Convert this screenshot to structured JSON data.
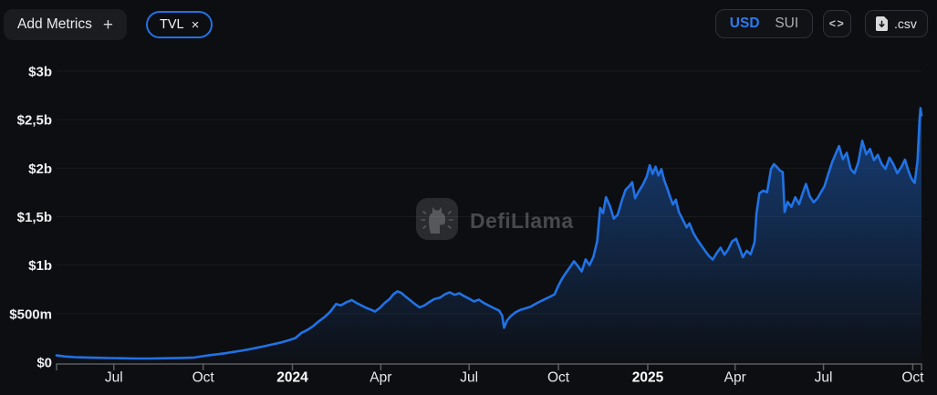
{
  "header": {
    "add_metrics": {
      "label": "Add Metrics",
      "plus_icon": "+"
    },
    "metric_chips": [
      {
        "label": "TVL",
        "close_icon": "×"
      }
    ],
    "currency_toggle": {
      "options": [
        "USD",
        "SUI"
      ],
      "selected": "USD"
    },
    "embed_button": {
      "glyph": "<>"
    },
    "csv_button": {
      "label": ".csv",
      "icon": "file-download"
    }
  },
  "watermark": {
    "label": "DefiLlama",
    "icon": "defillama-llama-logo"
  },
  "colors": {
    "background": "#0d0e11",
    "accent_blue": "#2172e5",
    "axis_text": "#eff0f2",
    "muted_text": "#aeb0b4",
    "grid_line": "rgba(255,255,255,0.05)",
    "axis_line": "#46484c",
    "tick_mark": "#5b5d61",
    "watermark_text": "#48494d"
  },
  "chart_data": {
    "type": "area",
    "unit": "USD",
    "y_domain": [
      0,
      3000
    ],
    "x_domain": [
      "2023-05-03",
      "2025-10-10"
    ],
    "values_unit": "millions_usd",
    "grid": true,
    "legend": "none",
    "y_ticks": [
      {
        "label": "$3b",
        "value": 3000
      },
      {
        "label": "$2,5b",
        "value": 2500
      },
      {
        "label": "$2b",
        "value": 2000
      },
      {
        "label": "$1,5b",
        "value": 1500
      },
      {
        "label": "$1b",
        "value": 1000
      },
      {
        "label": "$500m",
        "value": 500
      },
      {
        "label": "$0",
        "value": 0
      }
    ],
    "x_ticks": [
      {
        "label": "Jul",
        "date": "2023-07-01",
        "bold": false
      },
      {
        "label": "Oct",
        "date": "2023-10-01",
        "bold": false
      },
      {
        "label": "2024",
        "date": "2024-01-01",
        "bold": true
      },
      {
        "label": "Apr",
        "date": "2024-04-01",
        "bold": false
      },
      {
        "label": "Jul",
        "date": "2024-07-01",
        "bold": false
      },
      {
        "label": "Oct",
        "date": "2024-10-01",
        "bold": false
      },
      {
        "label": "2025",
        "date": "2025-01-01",
        "bold": true
      },
      {
        "label": "Apr",
        "date": "2025-04-01",
        "bold": false
      },
      {
        "label": "Jul",
        "date": "2025-07-01",
        "bold": false
      },
      {
        "label": "Oct",
        "date": "2025-10-01",
        "bold": false
      }
    ],
    "series": [
      {
        "name": "TVL",
        "color": "#2172e5",
        "points": [
          [
            "2023-05-03",
            70
          ],
          [
            "2023-05-12",
            58
          ],
          [
            "2023-05-22",
            52
          ],
          [
            "2023-06-03",
            48
          ],
          [
            "2023-06-14",
            45
          ],
          [
            "2023-06-26",
            42
          ],
          [
            "2023-07-08",
            40
          ],
          [
            "2023-07-24",
            38
          ],
          [
            "2023-08-08",
            38
          ],
          [
            "2023-08-24",
            40
          ],
          [
            "2023-09-08",
            43
          ],
          [
            "2023-09-22",
            48
          ],
          [
            "2023-10-01",
            62
          ],
          [
            "2023-10-08",
            72
          ],
          [
            "2023-10-16",
            82
          ],
          [
            "2023-10-24",
            92
          ],
          [
            "2023-11-01",
            105
          ],
          [
            "2023-11-09",
            118
          ],
          [
            "2023-11-17",
            132
          ],
          [
            "2023-11-25",
            148
          ],
          [
            "2023-12-03",
            165
          ],
          [
            "2023-12-11",
            182
          ],
          [
            "2023-12-19",
            200
          ],
          [
            "2023-12-27",
            222
          ],
          [
            "2024-01-04",
            248
          ],
          [
            "2024-01-10",
            300
          ],
          [
            "2024-01-16",
            330
          ],
          [
            "2024-01-22",
            370
          ],
          [
            "2024-01-28",
            420
          ],
          [
            "2024-02-03",
            465
          ],
          [
            "2024-02-09",
            520
          ],
          [
            "2024-02-15",
            600
          ],
          [
            "2024-02-20",
            585
          ],
          [
            "2024-02-25",
            615
          ],
          [
            "2024-03-02",
            640
          ],
          [
            "2024-03-07",
            610
          ],
          [
            "2024-03-12",
            585
          ],
          [
            "2024-03-17",
            560
          ],
          [
            "2024-03-22",
            540
          ],
          [
            "2024-03-26",
            522
          ],
          [
            "2024-03-31",
            560
          ],
          [
            "2024-04-05",
            610
          ],
          [
            "2024-04-10",
            650
          ],
          [
            "2024-04-14",
            700
          ],
          [
            "2024-04-18",
            730
          ],
          [
            "2024-04-22",
            715
          ],
          [
            "2024-04-26",
            680
          ],
          [
            "2024-05-01",
            640
          ],
          [
            "2024-05-06",
            600
          ],
          [
            "2024-05-11",
            565
          ],
          [
            "2024-05-16",
            585
          ],
          [
            "2024-05-21",
            620
          ],
          [
            "2024-05-26",
            650
          ],
          [
            "2024-06-01",
            665
          ],
          [
            "2024-06-06",
            700
          ],
          [
            "2024-06-11",
            720
          ],
          [
            "2024-06-16",
            695
          ],
          [
            "2024-06-21",
            710
          ],
          [
            "2024-06-26",
            680
          ],
          [
            "2024-07-01",
            655
          ],
          [
            "2024-07-06",
            625
          ],
          [
            "2024-07-11",
            645
          ],
          [
            "2024-07-16",
            610
          ],
          [
            "2024-07-21",
            585
          ],
          [
            "2024-07-26",
            560
          ],
          [
            "2024-08-01",
            530
          ],
          [
            "2024-08-04",
            480
          ],
          [
            "2024-08-06",
            355
          ],
          [
            "2024-08-09",
            430
          ],
          [
            "2024-08-13",
            475
          ],
          [
            "2024-08-18",
            515
          ],
          [
            "2024-08-23",
            540
          ],
          [
            "2024-08-28",
            555
          ],
          [
            "2024-09-02",
            570
          ],
          [
            "2024-09-07",
            598
          ],
          [
            "2024-09-12",
            625
          ],
          [
            "2024-09-17",
            650
          ],
          [
            "2024-09-22",
            672
          ],
          [
            "2024-09-27",
            700
          ],
          [
            "2024-10-01",
            790
          ],
          [
            "2024-10-05",
            865
          ],
          [
            "2024-10-09",
            925
          ],
          [
            "2024-10-13",
            980
          ],
          [
            "2024-10-17",
            1040
          ],
          [
            "2024-10-21",
            990
          ],
          [
            "2024-10-25",
            935
          ],
          [
            "2024-10-29",
            1060
          ],
          [
            "2024-11-02",
            1000
          ],
          [
            "2024-11-06",
            1085
          ],
          [
            "2024-11-10",
            1250
          ],
          [
            "2024-11-13",
            1590
          ],
          [
            "2024-11-16",
            1535
          ],
          [
            "2024-11-19",
            1700
          ],
          [
            "2024-11-23",
            1610
          ],
          [
            "2024-11-27",
            1480
          ],
          [
            "2024-12-01",
            1520
          ],
          [
            "2024-12-05",
            1655
          ],
          [
            "2024-12-09",
            1775
          ],
          [
            "2024-12-13",
            1815
          ],
          [
            "2024-12-16",
            1855
          ],
          [
            "2024-12-19",
            1690
          ],
          [
            "2024-12-23",
            1765
          ],
          [
            "2024-12-27",
            1830
          ],
          [
            "2024-12-31",
            1915
          ],
          [
            "2025-01-03",
            2030
          ],
          [
            "2025-01-06",
            1940
          ],
          [
            "2025-01-09",
            2015
          ],
          [
            "2025-01-12",
            1925
          ],
          [
            "2025-01-15",
            1990
          ],
          [
            "2025-01-18",
            1875
          ],
          [
            "2025-01-21",
            1795
          ],
          [
            "2025-01-24",
            1705
          ],
          [
            "2025-01-27",
            1625
          ],
          [
            "2025-01-30",
            1675
          ],
          [
            "2025-02-02",
            1550
          ],
          [
            "2025-02-06",
            1470
          ],
          [
            "2025-02-10",
            1390
          ],
          [
            "2025-02-13",
            1430
          ],
          [
            "2025-02-17",
            1330
          ],
          [
            "2025-02-21",
            1265
          ],
          [
            "2025-02-25",
            1205
          ],
          [
            "2025-03-01",
            1150
          ],
          [
            "2025-03-05",
            1095
          ],
          [
            "2025-03-09",
            1058
          ],
          [
            "2025-03-13",
            1125
          ],
          [
            "2025-03-17",
            1180
          ],
          [
            "2025-03-21",
            1108
          ],
          [
            "2025-03-25",
            1165
          ],
          [
            "2025-03-29",
            1245
          ],
          [
            "2025-04-02",
            1272
          ],
          [
            "2025-04-06",
            1168
          ],
          [
            "2025-04-09",
            1082
          ],
          [
            "2025-04-13",
            1148
          ],
          [
            "2025-04-17",
            1112
          ],
          [
            "2025-04-21",
            1235
          ],
          [
            "2025-04-23",
            1530
          ],
          [
            "2025-04-26",
            1740
          ],
          [
            "2025-04-30",
            1768
          ],
          [
            "2025-05-04",
            1752
          ],
          [
            "2025-05-08",
            1992
          ],
          [
            "2025-05-11",
            2042
          ],
          [
            "2025-05-14",
            2012
          ],
          [
            "2025-05-17",
            1978
          ],
          [
            "2025-05-20",
            1958
          ],
          [
            "2025-05-22",
            1548
          ],
          [
            "2025-05-25",
            1652
          ],
          [
            "2025-05-29",
            1602
          ],
          [
            "2025-06-02",
            1700
          ],
          [
            "2025-06-06",
            1628
          ],
          [
            "2025-06-10",
            1752
          ],
          [
            "2025-06-13",
            1838
          ],
          [
            "2025-06-17",
            1708
          ],
          [
            "2025-06-21",
            1648
          ],
          [
            "2025-06-25",
            1692
          ],
          [
            "2025-06-29",
            1762
          ],
          [
            "2025-07-02",
            1812
          ],
          [
            "2025-07-06",
            1942
          ],
          [
            "2025-07-10",
            2062
          ],
          [
            "2025-07-14",
            2158
          ],
          [
            "2025-07-17",
            2228
          ],
          [
            "2025-07-21",
            2092
          ],
          [
            "2025-07-25",
            2158
          ],
          [
            "2025-07-29",
            1992
          ],
          [
            "2025-08-02",
            1948
          ],
          [
            "2025-08-06",
            2062
          ],
          [
            "2025-08-10",
            2282
          ],
          [
            "2025-08-14",
            2142
          ],
          [
            "2025-08-18",
            2198
          ],
          [
            "2025-08-22",
            2082
          ],
          [
            "2025-08-26",
            2138
          ],
          [
            "2025-08-30",
            2042
          ],
          [
            "2025-09-03",
            1992
          ],
          [
            "2025-09-07",
            2108
          ],
          [
            "2025-09-11",
            2042
          ],
          [
            "2025-09-15",
            1948
          ],
          [
            "2025-09-19",
            2008
          ],
          [
            "2025-09-23",
            2088
          ],
          [
            "2025-09-26",
            1988
          ],
          [
            "2025-09-29",
            1908
          ],
          [
            "2025-10-01",
            1872
          ],
          [
            "2025-10-03",
            1848
          ],
          [
            "2025-10-06",
            2082
          ],
          [
            "2025-10-08",
            2500
          ],
          [
            "2025-10-09",
            2618
          ],
          [
            "2025-10-10",
            2545
          ]
        ]
      }
    ]
  }
}
